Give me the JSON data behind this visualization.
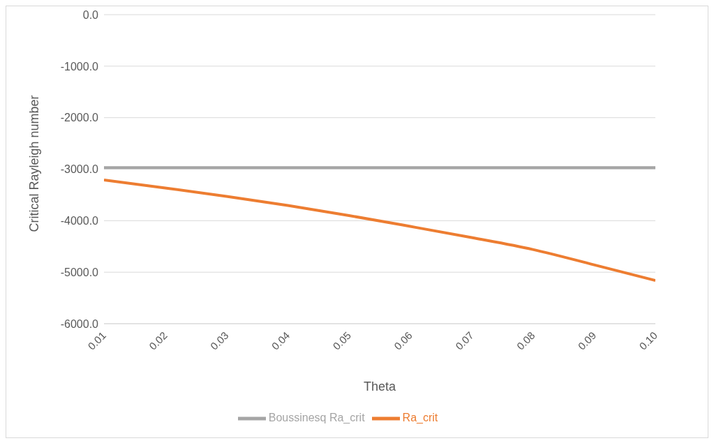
{
  "chart_data": {
    "type": "line",
    "xlabel": "Theta",
    "ylabel": "Critical Rayleigh number",
    "x": [
      0.01,
      0.02,
      0.03,
      0.04,
      0.05,
      0.06,
      0.07,
      0.08,
      0.09,
      0.1
    ],
    "series": [
      {
        "name": "Ra_crit",
        "color": "#ed7d31",
        "values": [
          -3210,
          -3365,
          -3528,
          -3704,
          -3900,
          -4111,
          -4328,
          -4559,
          -4857,
          -5160
        ]
      },
      {
        "name": "Boussinesq Ra_crit",
        "color": "#a5a5a5",
        "values": [
          -2970,
          -2970,
          -2970,
          -2970,
          -2970,
          -2970,
          -2970,
          -2970,
          -2970,
          -2970
        ]
      }
    ],
    "xlim": [
      0.01,
      0.1
    ],
    "xticks": [
      {
        "value": 0.01,
        "label": "0.01"
      },
      {
        "value": 0.02,
        "label": "0.02"
      },
      {
        "value": 0.03,
        "label": "0.03"
      },
      {
        "value": 0.04,
        "label": "0.04"
      },
      {
        "value": 0.05,
        "label": "0.05"
      },
      {
        "value": 0.06,
        "label": "0.06"
      },
      {
        "value": 0.07,
        "label": "0.07"
      },
      {
        "value": 0.08,
        "label": "0.08"
      },
      {
        "value": 0.09,
        "label": "0.09"
      },
      {
        "value": 0.1,
        "label": "0.10"
      }
    ],
    "ylim": [
      -6000,
      0
    ],
    "yticks": [
      {
        "value": -6000,
        "label": "-6000.0"
      },
      {
        "value": -5000,
        "label": "-5000.0"
      },
      {
        "value": -4000,
        "label": "-4000.0"
      },
      {
        "value": -3000,
        "label": "-3000.0"
      },
      {
        "value": -2000,
        "label": "-2000.0"
      },
      {
        "value": -1000,
        "label": "-1000.0"
      },
      {
        "value": 0,
        "label": "0.0"
      }
    ],
    "grid": "y",
    "legend": "bottom",
    "marker": "none",
    "line_style": "solid"
  }
}
